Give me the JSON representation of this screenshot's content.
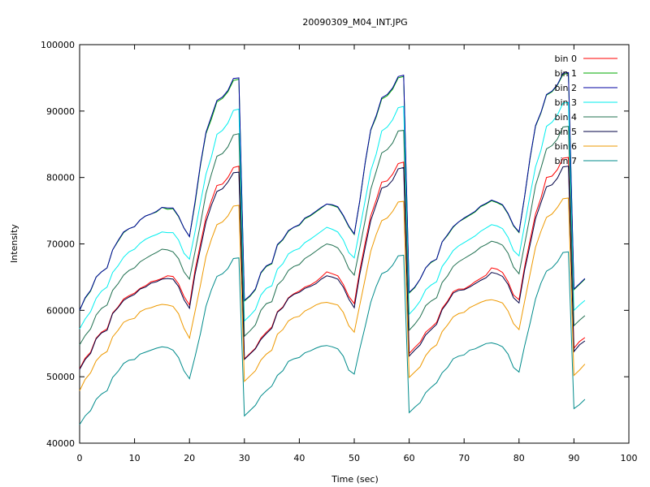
{
  "chart_data": {
    "type": "line",
    "title": "20090309_M04_INT.JPG",
    "xlabel": "Time (sec)",
    "ylabel": "Intensity",
    "xlim": [
      0,
      100
    ],
    "ylim": [
      40000,
      100000
    ],
    "xticks": [
      0,
      10,
      20,
      30,
      40,
      50,
      60,
      70,
      80,
      90,
      100
    ],
    "yticks": [
      40000,
      50000,
      60000,
      70000,
      80000,
      90000,
      100000
    ],
    "grid": false,
    "legend_position": "top-right",
    "x": [
      0,
      1,
      2,
      3,
      4,
      5,
      6,
      7,
      8,
      9,
      10,
      11,
      12,
      13,
      14,
      15,
      16,
      17,
      18,
      19,
      20,
      21,
      22,
      23,
      24,
      25,
      26,
      27,
      28,
      29,
      30,
      31,
      32,
      33,
      34,
      35,
      36,
      37,
      38,
      39,
      40,
      41,
      42,
      43,
      44,
      45,
      46,
      47,
      48,
      49,
      50,
      51,
      52,
      53,
      54,
      55,
      56,
      57,
      58,
      59,
      60,
      61,
      62,
      63,
      64,
      65,
      66,
      67,
      68,
      69,
      70,
      71,
      72,
      73,
      74,
      75,
      76,
      77,
      78,
      79,
      80,
      81,
      82,
      83,
      84,
      85,
      86,
      87,
      88,
      89,
      90,
      91,
      92
    ],
    "series": [
      {
        "name": "bin 0",
        "color": "#ff0000",
        "values": [
          51200,
          52800,
          53700,
          55800,
          56700,
          57200,
          59600,
          60500,
          61700,
          62200,
          62600,
          63300,
          63700,
          64300,
          64500,
          64800,
          65200,
          65100,
          64000,
          62100,
          60800,
          66000,
          70000,
          74000,
          76500,
          78800,
          79000,
          80000,
          81500,
          81700,
          52700,
          53500,
          54300,
          55800,
          56700,
          57500,
          59800,
          60500,
          61900,
          62500,
          62900,
          63500,
          63800,
          64300,
          65000,
          65800,
          65500,
          65200,
          63900,
          62100,
          61000,
          66000,
          70200,
          74200,
          76600,
          79300,
          79500,
          80500,
          82100,
          82300,
          53500,
          54400,
          55200,
          56700,
          57400,
          58200,
          60300,
          61400,
          62800,
          63200,
          63200,
          63700,
          64300,
          64800,
          65300,
          66400,
          66200,
          65700,
          64300,
          62300,
          61600,
          66500,
          70500,
          74500,
          76900,
          80000,
          80200,
          81200,
          82900,
          83000,
          54300,
          55300,
          55900
        ]
      },
      {
        "name": "bin 1",
        "color": "#00aa00",
        "values": [
          60000,
          61800,
          62900,
          65000,
          65800,
          66400,
          69100,
          70400,
          71700,
          72300,
          72600,
          73600,
          74200,
          74500,
          74800,
          75500,
          75200,
          75300,
          74100,
          72400,
          71100,
          76000,
          81800,
          86600,
          88800,
          91400,
          91900,
          92900,
          94600,
          94800,
          61400,
          62100,
          63100,
          65600,
          66600,
          67000,
          69800,
          70600,
          71900,
          72500,
          72800,
          73800,
          74200,
          74800,
          75400,
          76000,
          75800,
          75500,
          74200,
          72600,
          71400,
          76400,
          82200,
          87100,
          89100,
          91800,
          92300,
          93300,
          95000,
          95200,
          62600,
          63400,
          64700,
          66400,
          67200,
          67700,
          70300,
          71300,
          72500,
          73300,
          73800,
          74300,
          74800,
          75600,
          76000,
          76500,
          76200,
          75800,
          74500,
          72700,
          71700,
          77000,
          82800,
          87700,
          89700,
          92400,
          92900,
          93900,
          95500,
          95700,
          63100,
          63900,
          64700
        ]
      },
      {
        "name": "bin 2",
        "color": "#0000a0",
        "values": [
          60000,
          61900,
          63000,
          65000,
          65800,
          66400,
          69100,
          70500,
          71800,
          72300,
          72600,
          73600,
          74200,
          74500,
          74900,
          75500,
          75400,
          75400,
          74200,
          72400,
          71100,
          76300,
          82000,
          86800,
          89200,
          91600,
          92100,
          93100,
          94900,
          95000,
          61500,
          62200,
          63200,
          65700,
          66700,
          67100,
          69900,
          70700,
          72000,
          72500,
          72900,
          73900,
          74300,
          74900,
          75500,
          76000,
          75900,
          75600,
          74300,
          72700,
          71500,
          76500,
          82300,
          87200,
          89300,
          92000,
          92500,
          93500,
          95200,
          95400,
          62700,
          63500,
          64700,
          66400,
          67300,
          67700,
          70300,
          71400,
          72600,
          73300,
          73900,
          74400,
          74900,
          75700,
          76100,
          76600,
          76300,
          75900,
          74600,
          72800,
          71800,
          77100,
          82900,
          87800,
          89800,
          92500,
          93000,
          94000,
          95700,
          95800,
          63200,
          64000,
          64800
        ]
      },
      {
        "name": "bin 3",
        "color": "#00eeee",
        "values": [
          57200,
          58700,
          59800,
          61800,
          62900,
          63500,
          65700,
          66700,
          68000,
          68800,
          69200,
          70100,
          70700,
          71100,
          71400,
          71800,
          71700,
          71700,
          70600,
          68600,
          67700,
          71800,
          76200,
          80500,
          83100,
          86500,
          87100,
          88200,
          90100,
          90300,
          58400,
          59200,
          60100,
          62300,
          63300,
          63700,
          66200,
          67000,
          68500,
          69000,
          69300,
          70200,
          70700,
          71300,
          71900,
          72500,
          72200,
          71800,
          70600,
          68700,
          67900,
          72200,
          76600,
          81000,
          83500,
          87000,
          87600,
          88700,
          90500,
          90700,
          59400,
          60300,
          61400,
          63100,
          63800,
          64300,
          66600,
          67700,
          69000,
          69700,
          70200,
          70700,
          71200,
          71900,
          72400,
          72900,
          72700,
          72300,
          71000,
          69000,
          68200,
          72800,
          77300,
          81600,
          84100,
          87700,
          88300,
          89400,
          91200,
          91300,
          60000,
          60800,
          61500
        ]
      },
      {
        "name": "bin 4",
        "color": "#207050",
        "values": [
          54800,
          56200,
          57200,
          59300,
          60300,
          60800,
          63000,
          64000,
          65300,
          66000,
          66400,
          67300,
          67800,
          68300,
          68700,
          69200,
          69100,
          68800,
          67800,
          65800,
          64700,
          68800,
          73000,
          77600,
          80500,
          83200,
          83600,
          84600,
          86400,
          86600,
          56100,
          56900,
          57800,
          60000,
          61000,
          61300,
          63800,
          64600,
          66000,
          66600,
          66900,
          67800,
          68300,
          68900,
          69500,
          70000,
          69800,
          69400,
          68200,
          66300,
          65300,
          69400,
          73600,
          78200,
          80900,
          83700,
          84200,
          85200,
          87000,
          87100,
          57000,
          57900,
          59000,
          60700,
          61400,
          61900,
          64200,
          65200,
          66600,
          67300,
          67800,
          68300,
          68800,
          69500,
          69900,
          70400,
          70200,
          69800,
          68600,
          66500,
          65500,
          69900,
          74200,
          78800,
          81400,
          84300,
          84800,
          85800,
          87600,
          87700,
          57700,
          58500,
          59200
        ]
      },
      {
        "name": "bin 5",
        "color": "#000044",
        "values": [
          51100,
          52600,
          53500,
          55700,
          56600,
          57000,
          59500,
          60400,
          61500,
          62000,
          62400,
          63200,
          63500,
          64100,
          64300,
          64700,
          64800,
          64700,
          63600,
          61600,
          60300,
          65400,
          69300,
          73300,
          75800,
          77900,
          78300,
          79300,
          80700,
          80800,
          52600,
          53400,
          54200,
          55600,
          56500,
          57300,
          59700,
          60400,
          61800,
          62400,
          62700,
          63300,
          63600,
          64000,
          64700,
          65200,
          65000,
          64700,
          63500,
          61700,
          60400,
          65400,
          69500,
          73500,
          75900,
          78400,
          78700,
          79600,
          81300,
          81500,
          53100,
          54000,
          54800,
          56300,
          57100,
          57900,
          60100,
          61200,
          62600,
          63000,
          63100,
          63500,
          64000,
          64500,
          64900,
          65700,
          65500,
          65100,
          63900,
          61900,
          61100,
          66000,
          69800,
          73800,
          76200,
          78600,
          78900,
          79900,
          81600,
          81700,
          53800,
          54800,
          55400
        ]
      },
      {
        "name": "bin 6",
        "color": "#ee9900",
        "values": [
          47900,
          49600,
          50600,
          52400,
          53300,
          53800,
          56000,
          57000,
          58200,
          58600,
          58800,
          59800,
          60200,
          60400,
          60700,
          60900,
          60800,
          60600,
          59500,
          57300,
          55800,
          59800,
          63800,
          68100,
          70700,
          72900,
          73300,
          74200,
          75700,
          75800,
          49300,
          50100,
          50900,
          52500,
          53400,
          54000,
          56400,
          57100,
          58400,
          58900,
          59100,
          59900,
          60300,
          60800,
          61100,
          61200,
          61000,
          60800,
          59700,
          57700,
          56700,
          60800,
          64800,
          68900,
          71400,
          73500,
          73900,
          74900,
          76300,
          76400,
          49900,
          50700,
          51500,
          53200,
          54200,
          54800,
          56800,
          57800,
          59000,
          59500,
          59700,
          60400,
          60800,
          61200,
          61500,
          61600,
          61400,
          61100,
          59900,
          58000,
          57100,
          61300,
          65400,
          69500,
          71900,
          74000,
          74500,
          75500,
          76800,
          76900,
          50200,
          51000,
          51900
        ]
      },
      {
        "name": "bin 7",
        "color": "#008b8b",
        "values": [
          42800,
          44100,
          44900,
          46600,
          47400,
          47900,
          49900,
          50800,
          52000,
          52500,
          52600,
          53400,
          53700,
          54000,
          54300,
          54500,
          54400,
          54000,
          52900,
          50900,
          49700,
          53000,
          56500,
          60600,
          63100,
          65100,
          65500,
          66300,
          67800,
          67900,
          44100,
          44900,
          45700,
          47100,
          47900,
          48600,
          50200,
          50900,
          52300,
          52700,
          52900,
          53600,
          53900,
          54300,
          54600,
          54700,
          54500,
          54200,
          53100,
          51000,
          50400,
          54200,
          57600,
          61200,
          63600,
          65500,
          65900,
          66800,
          68200,
          68300,
          44600,
          45400,
          46100,
          47600,
          48400,
          49100,
          50600,
          51400,
          52700,
          53100,
          53300,
          54000,
          54200,
          54600,
          55000,
          55100,
          54900,
          54500,
          53400,
          51400,
          50700,
          54600,
          58000,
          61700,
          64100,
          65900,
          66400,
          67300,
          68700,
          68800,
          45200,
          45800,
          46600
        ]
      }
    ]
  }
}
